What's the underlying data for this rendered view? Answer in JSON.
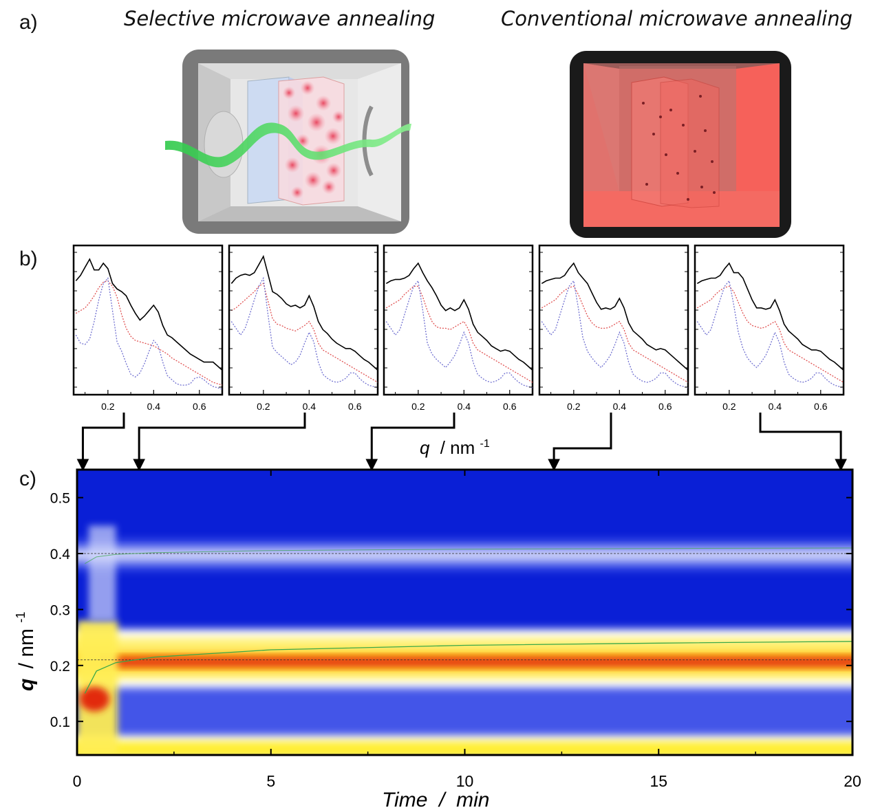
{
  "panel_a": {
    "label": "a)",
    "left_title": "Selective microwave annealing",
    "right_title": "Conventional microwave annealing"
  },
  "panel_b": {
    "label": "b)",
    "xlabel_symbol": "q",
    "xlabel_unit": "/ nm",
    "xlabel_exp": "-1",
    "xtick_labels": [
      "0.2",
      "0.4",
      "0.6"
    ]
  },
  "panel_c": {
    "label": "c)",
    "ylabel_symbol": "q",
    "ylabel_unit": "/ nm",
    "ylabel_exp": "-1",
    "xlabel": "Time  /  min"
  },
  "chart_data": [
    {
      "type": "line",
      "x": [
        0.06,
        0.08,
        0.1,
        0.12,
        0.14,
        0.16,
        0.18,
        0.2,
        0.22,
        0.24,
        0.26,
        0.28,
        0.3,
        0.32,
        0.34,
        0.36,
        0.38,
        0.4,
        0.42,
        0.44,
        0.46,
        0.48,
        0.5,
        0.52,
        0.54,
        0.56,
        0.58,
        0.6,
        0.62,
        0.64,
        0.66,
        0.68,
        0.7
      ],
      "xlim": [
        0.05,
        0.7
      ],
      "xticks": [
        0.2,
        0.4,
        0.6
      ],
      "series": [
        {
          "color": "#000000",
          "style": "solid",
          "values": [
            0.8,
            0.84,
            0.9,
            0.96,
            0.88,
            0.88,
            0.93,
            0.89,
            0.78,
            0.74,
            0.72,
            0.69,
            0.62,
            0.56,
            0.51,
            0.54,
            0.58,
            0.62,
            0.57,
            0.47,
            0.4,
            0.38,
            0.35,
            0.32,
            0.29,
            0.26,
            0.24,
            0.22,
            0.2,
            0.2,
            0.2,
            0.17,
            0.14
          ]
        },
        {
          "color": "#e05050",
          "style": "dotted",
          "values": [
            0.56,
            0.58,
            0.6,
            0.64,
            0.69,
            0.75,
            0.79,
            0.8,
            0.76,
            0.68,
            0.55,
            0.45,
            0.39,
            0.36,
            0.35,
            0.34,
            0.33,
            0.32,
            0.3,
            0.28,
            0.26,
            0.23,
            0.21,
            0.19,
            0.17,
            0.15,
            0.13,
            0.11,
            0.09,
            0.07,
            0.05,
            0.04,
            0.03
          ]
        },
        {
          "color": "#7070d0",
          "style": "dotted",
          "values": [
            0.4,
            0.34,
            0.33,
            0.37,
            0.5,
            0.66,
            0.78,
            0.82,
            0.58,
            0.35,
            0.28,
            0.19,
            0.11,
            0.09,
            0.12,
            0.19,
            0.28,
            0.36,
            0.32,
            0.2,
            0.1,
            0.07,
            0.04,
            0.03,
            0.03,
            0.04,
            0.08,
            0.09,
            0.07,
            0.04,
            0.02,
            0.01,
            0.0
          ]
        }
      ]
    },
    {
      "type": "line",
      "x": [
        0.06,
        0.08,
        0.1,
        0.12,
        0.14,
        0.16,
        0.18,
        0.2,
        0.22,
        0.24,
        0.26,
        0.28,
        0.3,
        0.32,
        0.34,
        0.36,
        0.38,
        0.4,
        0.42,
        0.44,
        0.46,
        0.48,
        0.5,
        0.52,
        0.54,
        0.56,
        0.58,
        0.6,
        0.62,
        0.64,
        0.66,
        0.68,
        0.7
      ],
      "xlim": [
        0.05,
        0.7
      ],
      "xticks": [
        0.2,
        0.4,
        0.6
      ],
      "series": [
        {
          "color": "#000000",
          "style": "solid",
          "values": [
            0.78,
            0.82,
            0.84,
            0.85,
            0.84,
            0.86,
            0.92,
            0.98,
            0.85,
            0.72,
            0.7,
            0.67,
            0.63,
            0.61,
            0.62,
            0.6,
            0.62,
            0.69,
            0.61,
            0.5,
            0.44,
            0.41,
            0.37,
            0.34,
            0.32,
            0.3,
            0.3,
            0.28,
            0.25,
            0.22,
            0.2,
            0.17,
            0.14
          ]
        },
        {
          "color": "#e05050",
          "style": "dotted",
          "values": [
            0.58,
            0.6,
            0.63,
            0.66,
            0.69,
            0.72,
            0.76,
            0.78,
            0.65,
            0.52,
            0.48,
            0.47,
            0.45,
            0.44,
            0.43,
            0.45,
            0.47,
            0.5,
            0.44,
            0.34,
            0.29,
            0.27,
            0.25,
            0.23,
            0.21,
            0.19,
            0.17,
            0.15,
            0.13,
            0.11,
            0.09,
            0.07,
            0.05
          ]
        },
        {
          "color": "#7070d0",
          "style": "dotted",
          "values": [
            0.5,
            0.45,
            0.4,
            0.45,
            0.55,
            0.66,
            0.76,
            0.82,
            0.55,
            0.31,
            0.27,
            0.24,
            0.21,
            0.18,
            0.2,
            0.25,
            0.34,
            0.42,
            0.35,
            0.2,
            0.11,
            0.08,
            0.06,
            0.05,
            0.06,
            0.08,
            0.12,
            0.12,
            0.08,
            0.05,
            0.03,
            0.02,
            0.01
          ]
        }
      ]
    },
    {
      "type": "line",
      "x": [
        0.06,
        0.08,
        0.1,
        0.12,
        0.14,
        0.16,
        0.18,
        0.2,
        0.22,
        0.24,
        0.26,
        0.28,
        0.3,
        0.32,
        0.34,
        0.36,
        0.38,
        0.4,
        0.42,
        0.44,
        0.46,
        0.48,
        0.5,
        0.52,
        0.54,
        0.56,
        0.58,
        0.6,
        0.62,
        0.64,
        0.66,
        0.68,
        0.7
      ],
      "xlim": [
        0.05,
        0.7
      ],
      "xticks": [
        0.2,
        0.4,
        0.6
      ],
      "series": [
        {
          "color": "#000000",
          "style": "solid",
          "values": [
            0.78,
            0.8,
            0.81,
            0.81,
            0.82,
            0.84,
            0.89,
            0.93,
            0.86,
            0.8,
            0.75,
            0.69,
            0.62,
            0.58,
            0.6,
            0.58,
            0.6,
            0.66,
            0.59,
            0.48,
            0.42,
            0.39,
            0.36,
            0.32,
            0.3,
            0.28,
            0.29,
            0.28,
            0.25,
            0.22,
            0.2,
            0.17,
            0.14
          ]
        },
        {
          "color": "#e05050",
          "style": "dotted",
          "values": [
            0.6,
            0.62,
            0.64,
            0.66,
            0.7,
            0.73,
            0.76,
            0.76,
            0.68,
            0.58,
            0.5,
            0.46,
            0.45,
            0.45,
            0.44,
            0.46,
            0.48,
            0.5,
            0.44,
            0.34,
            0.29,
            0.27,
            0.25,
            0.23,
            0.21,
            0.19,
            0.17,
            0.15,
            0.13,
            0.11,
            0.09,
            0.07,
            0.05
          ]
        },
        {
          "color": "#7070d0",
          "style": "dotted",
          "values": [
            0.5,
            0.45,
            0.4,
            0.44,
            0.55,
            0.66,
            0.76,
            0.8,
            0.58,
            0.34,
            0.26,
            0.22,
            0.19,
            0.16,
            0.2,
            0.25,
            0.33,
            0.42,
            0.34,
            0.2,
            0.11,
            0.08,
            0.06,
            0.05,
            0.06,
            0.08,
            0.12,
            0.12,
            0.08,
            0.05,
            0.03,
            0.02,
            0.01
          ]
        }
      ]
    },
    {
      "type": "line",
      "x": [
        0.06,
        0.08,
        0.1,
        0.12,
        0.14,
        0.16,
        0.18,
        0.2,
        0.22,
        0.24,
        0.26,
        0.28,
        0.3,
        0.32,
        0.34,
        0.36,
        0.38,
        0.4,
        0.42,
        0.44,
        0.46,
        0.48,
        0.5,
        0.52,
        0.54,
        0.56,
        0.58,
        0.6,
        0.62,
        0.64,
        0.66,
        0.68,
        0.7
      ],
      "xlim": [
        0.05,
        0.7
      ],
      "xticks": [
        0.2,
        0.4,
        0.6
      ],
      "series": [
        {
          "color": "#000000",
          "style": "solid",
          "values": [
            0.78,
            0.8,
            0.81,
            0.82,
            0.82,
            0.84,
            0.89,
            0.93,
            0.86,
            0.82,
            0.78,
            0.71,
            0.64,
            0.59,
            0.6,
            0.59,
            0.61,
            0.67,
            0.6,
            0.49,
            0.43,
            0.4,
            0.37,
            0.33,
            0.31,
            0.29,
            0.3,
            0.29,
            0.26,
            0.23,
            0.2,
            0.17,
            0.14
          ]
        },
        {
          "color": "#e05050",
          "style": "dotted",
          "values": [
            0.6,
            0.62,
            0.64,
            0.66,
            0.7,
            0.73,
            0.75,
            0.76,
            0.7,
            0.62,
            0.54,
            0.49,
            0.46,
            0.45,
            0.45,
            0.46,
            0.48,
            0.5,
            0.44,
            0.34,
            0.29,
            0.27,
            0.25,
            0.23,
            0.21,
            0.19,
            0.17,
            0.15,
            0.13,
            0.11,
            0.09,
            0.07,
            0.05
          ]
        },
        {
          "color": "#7070d0",
          "style": "dotted",
          "values": [
            0.5,
            0.45,
            0.4,
            0.44,
            0.55,
            0.66,
            0.76,
            0.8,
            0.6,
            0.38,
            0.28,
            0.23,
            0.19,
            0.16,
            0.2,
            0.25,
            0.33,
            0.42,
            0.34,
            0.2,
            0.11,
            0.08,
            0.06,
            0.05,
            0.06,
            0.08,
            0.12,
            0.12,
            0.08,
            0.05,
            0.03,
            0.02,
            0.01
          ]
        }
      ]
    },
    {
      "type": "line",
      "x": [
        0.06,
        0.08,
        0.1,
        0.12,
        0.14,
        0.16,
        0.18,
        0.2,
        0.22,
        0.24,
        0.26,
        0.28,
        0.3,
        0.32,
        0.34,
        0.36,
        0.38,
        0.4,
        0.42,
        0.44,
        0.46,
        0.48,
        0.5,
        0.52,
        0.54,
        0.56,
        0.58,
        0.6,
        0.62,
        0.64,
        0.66,
        0.68,
        0.7
      ],
      "xlim": [
        0.05,
        0.7
      ],
      "xticks": [
        0.2,
        0.4,
        0.6
      ],
      "series": [
        {
          "color": "#000000",
          "style": "solid",
          "values": [
            0.78,
            0.8,
            0.81,
            0.82,
            0.82,
            0.84,
            0.89,
            0.93,
            0.86,
            0.86,
            0.82,
            0.74,
            0.66,
            0.6,
            0.6,
            0.59,
            0.6,
            0.66,
            0.58,
            0.48,
            0.43,
            0.4,
            0.37,
            0.33,
            0.31,
            0.29,
            0.29,
            0.28,
            0.25,
            0.22,
            0.2,
            0.17,
            0.14
          ]
        },
        {
          "color": "#e05050",
          "style": "dotted",
          "values": [
            0.6,
            0.62,
            0.64,
            0.66,
            0.7,
            0.73,
            0.75,
            0.76,
            0.72,
            0.64,
            0.56,
            0.5,
            0.47,
            0.46,
            0.45,
            0.46,
            0.48,
            0.5,
            0.44,
            0.34,
            0.29,
            0.27,
            0.25,
            0.23,
            0.21,
            0.19,
            0.17,
            0.15,
            0.13,
            0.11,
            0.09,
            0.07,
            0.05
          ]
        },
        {
          "color": "#7070d0",
          "style": "dotted",
          "values": [
            0.5,
            0.45,
            0.4,
            0.44,
            0.55,
            0.66,
            0.76,
            0.8,
            0.62,
            0.42,
            0.3,
            0.23,
            0.19,
            0.16,
            0.2,
            0.25,
            0.33,
            0.42,
            0.34,
            0.2,
            0.11,
            0.08,
            0.06,
            0.05,
            0.06,
            0.08,
            0.12,
            0.12,
            0.08,
            0.05,
            0.03,
            0.02,
            0.01
          ]
        }
      ]
    },
    {
      "type": "heatmap",
      "x_range": [
        0,
        20
      ],
      "y_range": [
        0.04,
        0.55
      ],
      "xticks": [
        0,
        5,
        10,
        15,
        20
      ],
      "yticks": [
        0.1,
        0.2,
        0.3,
        0.4,
        0.5
      ],
      "colormap": [
        "#0a1fd6",
        "#5b6cf0",
        "#ffffff",
        "#ffee33",
        "#e22b0c"
      ],
      "bands": [
        {
          "name": "low-q edge",
          "q": 0.05,
          "level": "high"
        },
        {
          "name": "main peak",
          "q": 0.205,
          "level": "max"
        },
        {
          "name": "second order",
          "q": 0.4,
          "level": "low"
        }
      ],
      "reference_lines": [
        0.21,
        0.4
      ],
      "fit_line": {
        "color": "#3aa84a",
        "time": [
          0.2,
          0.5,
          1,
          2,
          5,
          10,
          15,
          20
        ],
        "q": [
          0.15,
          0.19,
          0.205,
          0.215,
          0.228,
          0.236,
          0.24,
          0.243
        ]
      },
      "marker_times": [
        0.15,
        1.6,
        7.6,
        12.3,
        19.7
      ]
    }
  ]
}
